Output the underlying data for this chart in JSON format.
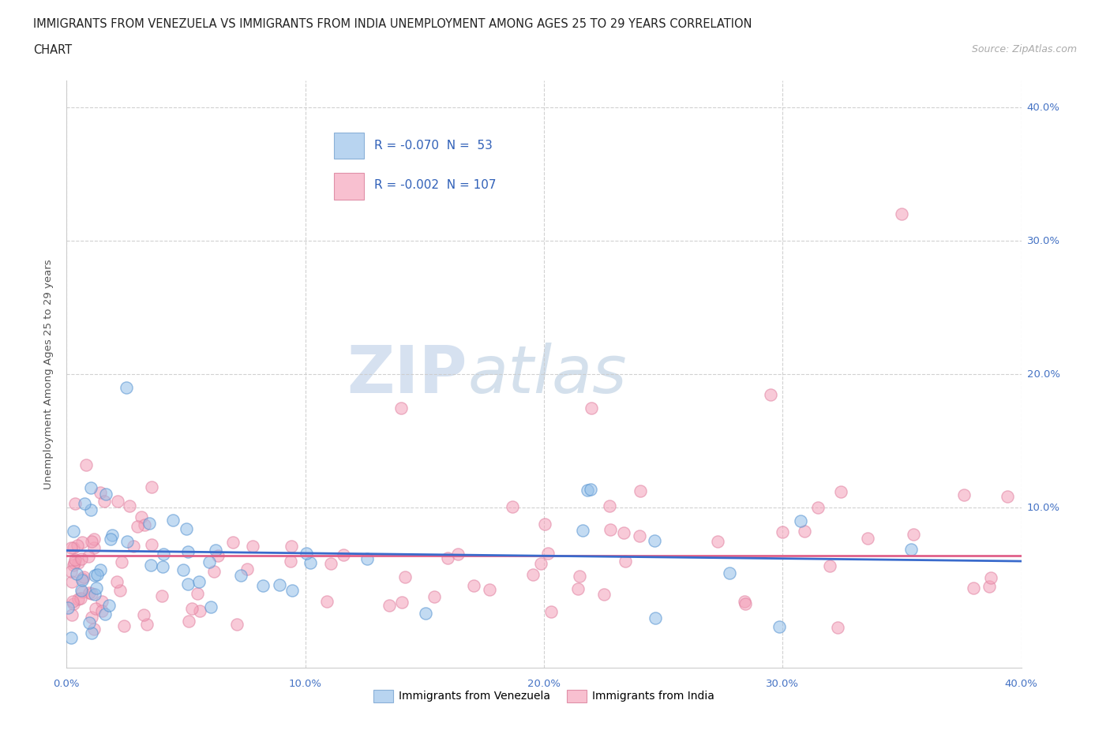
{
  "title_line1": "IMMIGRANTS FROM VENEZUELA VS IMMIGRANTS FROM INDIA UNEMPLOYMENT AMONG AGES 25 TO 29 YEARS CORRELATION",
  "title_line2": "CHART",
  "source_text": "Source: ZipAtlas.com",
  "ylabel": "Unemployment Among Ages 25 to 29 years",
  "xlim": [
    0.0,
    0.4
  ],
  "ylim": [
    -0.02,
    0.42
  ],
  "xtick_values": [
    0.0,
    0.1,
    0.2,
    0.3,
    0.4
  ],
  "ytick_values": [
    0.1,
    0.2,
    0.3,
    0.4
  ],
  "watermark_zip": "ZIP",
  "watermark_atlas": "atlas",
  "legend_label_venezuela": "Immigrants from Venezuela",
  "legend_label_india": "Immigrants from India",
  "color_venezuela": "#93bee8",
  "color_india": "#f4a0b8",
  "color_trendline_venezuela": "#3a6bcc",
  "color_trendline_india": "#e0608a",
  "trendline_ven_y0": 0.068,
  "trendline_ven_y1": 0.06,
  "trendline_ind_y0": 0.064,
  "trendline_ind_y1": 0.064,
  "legend_box_R_ven": "R = -0.070  N =  53",
  "legend_box_R_ind": "R = -0.002  N = 107",
  "background_color": "#ffffff"
}
